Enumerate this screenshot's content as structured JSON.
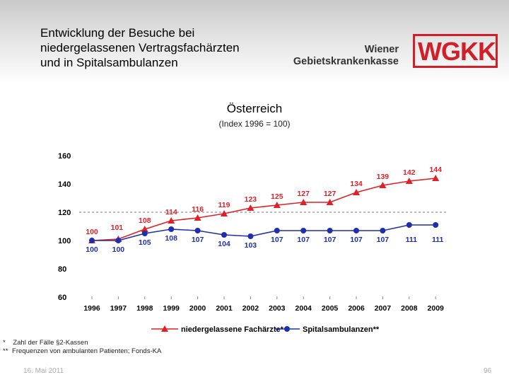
{
  "header": {
    "title": "Entwicklung der Besuche bei\nniedergelassenen Vertragsfachärzten\nund in Spitalsambulanzen"
  },
  "brand": {
    "name": "Wiener\nGebietskrankenkasse",
    "logo_text": "WGKK",
    "logo_color": "#d11f2a"
  },
  "chart_data": {
    "type": "line",
    "title": "Österreich",
    "subtitle": "(Index 1996 = 100)",
    "categories": [
      "1996",
      "1997",
      "1998",
      "1999",
      "2000",
      "2001",
      "2002",
      "2003",
      "2004",
      "2005",
      "2006",
      "2007",
      "2008",
      "2009"
    ],
    "ylim": [
      60,
      160
    ],
    "yticks": [
      60,
      80,
      100,
      120,
      140,
      160
    ],
    "reference_line": 120,
    "series": [
      {
        "name": "niedergelassene Fachärzte*",
        "color": "#e01f26",
        "marker": "triangle",
        "values": [
          100,
          101,
          108,
          114,
          116,
          119,
          123,
          125,
          127,
          127,
          134,
          139,
          142,
          144
        ]
      },
      {
        "name": "Spitalsambulanzen**",
        "color": "#1f2eaa",
        "marker": "circle",
        "values": [
          100,
          100,
          105,
          108,
          107,
          104,
          103,
          107,
          107,
          107,
          107,
          107,
          111,
          111
        ]
      }
    ]
  },
  "footnotes": [
    {
      "mark": "*",
      "text": "Zahl der Fälle §2-Kassen"
    },
    {
      "mark": "**",
      "text": "Frequenzen von ambulanten Patienten; Fonds-KA"
    }
  ],
  "footer": {
    "date": "16. Mai 2011",
    "page": "96"
  }
}
